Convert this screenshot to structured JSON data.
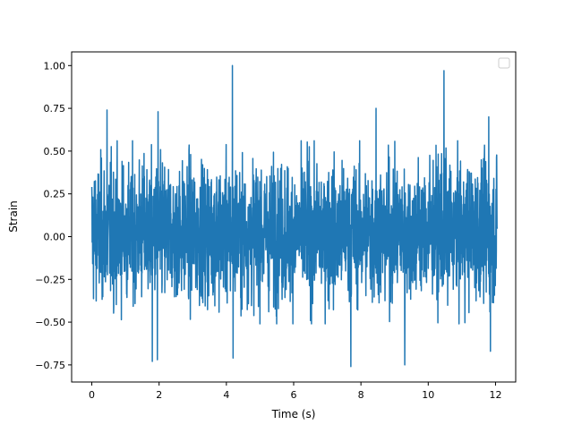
{
  "chart_data": {
    "type": "line",
    "title": "",
    "xlabel": "Time (s)",
    "ylabel": "Strain",
    "xlim": [
      -0.6,
      12.6
    ],
    "ylim": [
      -0.85,
      1.08
    ],
    "x_ticks": [
      0,
      2,
      4,
      6,
      8,
      10,
      12
    ],
    "x_tick_labels": [
      "0",
      "2",
      "4",
      "6",
      "8",
      "10",
      "12"
    ],
    "y_ticks": [
      -0.75,
      -0.5,
      -0.25,
      0.0,
      0.25,
      0.5,
      0.75,
      1.0
    ],
    "y_tick_labels": [
      "−0.75",
      "−0.50",
      "−0.25",
      "0.00",
      "0.25",
      "0.50",
      "0.75",
      "1.00"
    ],
    "grid": false,
    "legend": {
      "placement": "top-right",
      "entries": []
    },
    "series": [
      {
        "color": "#1f77b4",
        "x_range": [
          0,
          12.05
        ],
        "sample_count": 2400,
        "typical_envelope": [
          -0.45,
          0.5
        ],
        "peaks": [
          {
            "x": 4.18,
            "y": 1.0
          },
          {
            "x": 10.47,
            "y": 0.97
          },
          {
            "x": 0.45,
            "y": 0.74
          },
          {
            "x": 1.97,
            "y": 0.73
          },
          {
            "x": 8.45,
            "y": 0.75
          },
          {
            "x": 11.8,
            "y": 0.7
          }
        ],
        "troughs": [
          {
            "x": 1.8,
            "y": -0.73
          },
          {
            "x": 1.95,
            "y": -0.72
          },
          {
            "x": 4.2,
            "y": -0.71
          },
          {
            "x": 7.7,
            "y": -0.76
          },
          {
            "x": 9.3,
            "y": -0.75
          },
          {
            "x": 11.85,
            "y": -0.67
          }
        ]
      }
    ]
  }
}
